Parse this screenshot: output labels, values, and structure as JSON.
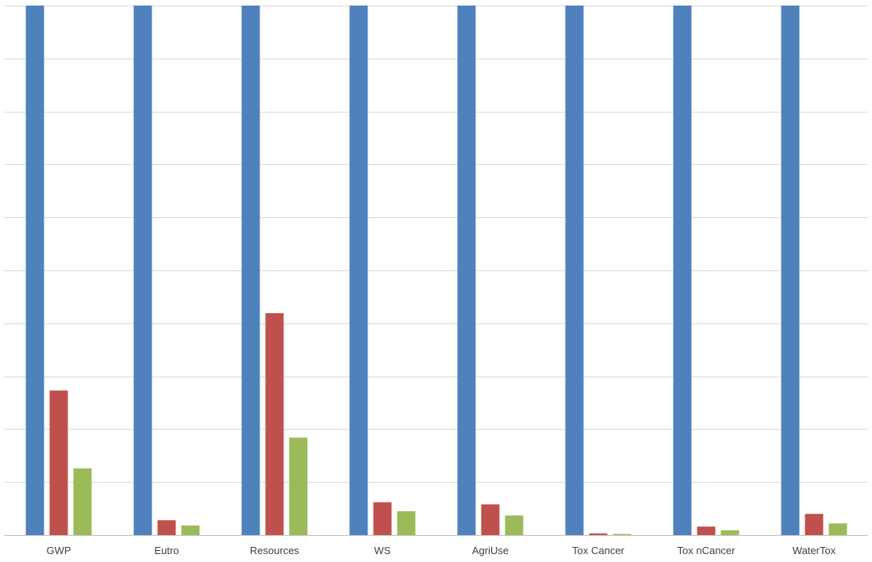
{
  "chart_data": {
    "type": "bar",
    "categories": [
      "GWP",
      "Eutro",
      "Resources",
      "WS",
      "AgriUse",
      "Tox Cancer",
      "Tox nCancer",
      "WaterTox"
    ],
    "series": [
      {
        "values": [
          100,
          100,
          100,
          100,
          100,
          100,
          100,
          100
        ]
      },
      {
        "values": [
          27.3,
          2.8,
          41.9,
          6.2,
          5.8,
          0.3,
          1.6,
          4.0
        ]
      },
      {
        "values": [
          12.6,
          1.8,
          18.4,
          4.5,
          3.7,
          0.2,
          0.9,
          2.2
        ]
      }
    ],
    "ylim": [
      0,
      100
    ],
    "grid": true,
    "legend": "none",
    "colors": [
      "#4f81bd",
      "#c0504d",
      "#9bbb59"
    ]
  }
}
